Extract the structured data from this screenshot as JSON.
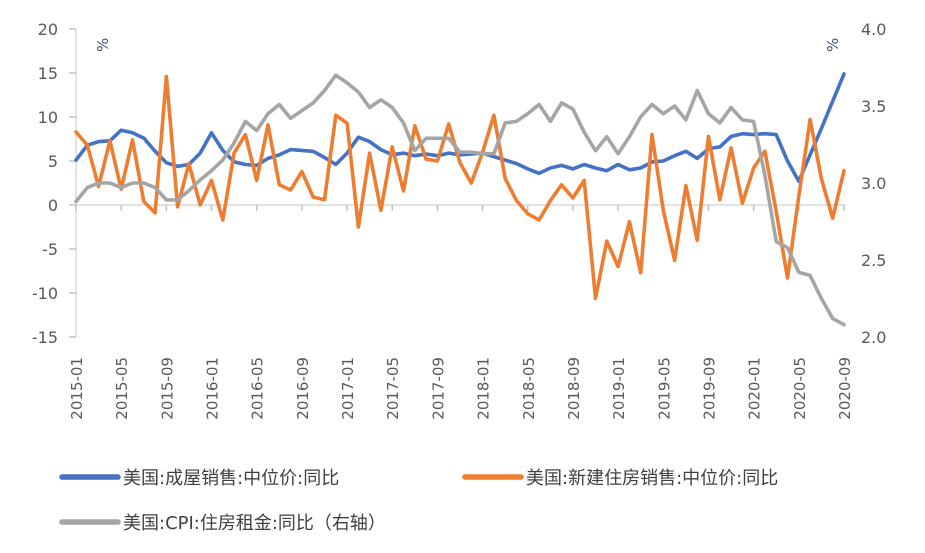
{
  "chart_data": {
    "type": "line",
    "title": "",
    "x_tick_labels": [
      "2015-01",
      "2015-05",
      "2015-09",
      "2016-01",
      "2016-05",
      "2016-09",
      "2017-01",
      "2017-05",
      "2017-09",
      "2018-01",
      "2018-05",
      "2018-09",
      "2019-01",
      "2019-05",
      "2019-09",
      "2020-01",
      "2020-05",
      "2020-09"
    ],
    "months": [
      "2015-01",
      "2015-02",
      "2015-03",
      "2015-04",
      "2015-05",
      "2015-06",
      "2015-07",
      "2015-08",
      "2015-09",
      "2015-10",
      "2015-11",
      "2015-12",
      "2016-01",
      "2016-02",
      "2016-03",
      "2016-04",
      "2016-05",
      "2016-06",
      "2016-07",
      "2016-08",
      "2016-09",
      "2016-10",
      "2016-11",
      "2016-12",
      "2017-01",
      "2017-02",
      "2017-03",
      "2017-04",
      "2017-05",
      "2017-06",
      "2017-07",
      "2017-08",
      "2017-09",
      "2017-10",
      "2017-11",
      "2017-12",
      "2018-01",
      "2018-02",
      "2018-03",
      "2018-04",
      "2018-05",
      "2018-06",
      "2018-07",
      "2018-08",
      "2018-09",
      "2018-10",
      "2018-11",
      "2018-12",
      "2019-01",
      "2019-02",
      "2019-03",
      "2019-04",
      "2019-05",
      "2019-06",
      "2019-07",
      "2019-08",
      "2019-09",
      "2019-10",
      "2019-11",
      "2019-12",
      "2020-01",
      "2020-02",
      "2020-03",
      "2020-04",
      "2020-05",
      "2020-06",
      "2020-07",
      "2020-08",
      "2020-09"
    ],
    "y_left": {
      "unit": "%",
      "ticks": [
        20,
        15,
        10,
        5,
        0,
        -5,
        -10,
        -15
      ],
      "tick_labels": [
        "20",
        "15",
        "10",
        "5",
        "0",
        "-5",
        "-10",
        "-15"
      ],
      "min": -15,
      "max": 20
    },
    "y_right": {
      "unit": "%",
      "ticks": [
        4.0,
        3.5,
        3.0,
        2.5,
        2.0
      ],
      "tick_labels": [
        "4.0",
        "3.5",
        "3.0",
        "2.5",
        "2.0"
      ],
      "min": 2.0,
      "max": 4.0
    },
    "series": [
      {
        "name": "美国:成屋销售:中位价:同比",
        "axis": "left",
        "color": "#4472C4",
        "values": [
          5.1,
          6.8,
          7.2,
          7.3,
          8.5,
          8.2,
          7.6,
          6.1,
          4.8,
          4.4,
          4.6,
          5.9,
          8.2,
          6.2,
          4.9,
          4.6,
          4.5,
          5.3,
          5.7,
          6.3,
          6.2,
          6.1,
          5.4,
          4.6,
          5.9,
          7.7,
          7.2,
          6.3,
          5.7,
          5.9,
          5.6,
          5.8,
          5.6,
          5.9,
          5.7,
          5.8,
          5.9,
          5.5,
          5.1,
          4.7,
          4.1,
          3.6,
          4.2,
          4.5,
          4.1,
          4.6,
          4.2,
          3.9,
          4.6,
          4.0,
          4.2,
          4.9,
          5.0,
          5.6,
          6.1,
          5.3,
          6.4,
          6.6,
          7.8,
          8.1,
          8.0,
          8.1,
          8.0,
          5.0,
          2.7,
          5.7,
          8.7,
          11.8,
          14.9
        ]
      },
      {
        "name": "美国:新建住房销售:中位价:同比",
        "axis": "left",
        "color": "#ED7D31",
        "values": [
          8.3,
          6.8,
          2.1,
          7.3,
          1.8,
          7.4,
          0.4,
          -0.9,
          14.6,
          -0.2,
          4.7,
          0.0,
          2.8,
          -1.7,
          5.9,
          8.0,
          2.8,
          9.1,
          2.3,
          1.7,
          3.8,
          0.9,
          0.6,
          10.2,
          9.3,
          -2.5,
          5.9,
          -0.6,
          6.6,
          1.6,
          9.0,
          5.2,
          5.0,
          9.2,
          4.8,
          2.5,
          6.0,
          10.2,
          3.0,
          0.5,
          -1.0,
          -1.7,
          0.5,
          2.3,
          0.8,
          2.8,
          -10.6,
          -4.1,
          -7.0,
          -1.9,
          -7.7,
          8.0,
          -0.6,
          -6.3,
          2.2,
          -4.0,
          7.8,
          0.6,
          6.5,
          0.2,
          4.2,
          6.1,
          -0.7,
          -8.3,
          1.0,
          9.7,
          3.0,
          -1.5,
          3.9
        ]
      },
      {
        "name": "美国:CPI:住房租金:同比（右轴）",
        "axis": "right",
        "color": "#A5A5A5",
        "values": [
          2.88,
          2.97,
          3.0,
          3.0,
          2.97,
          3.0,
          3.0,
          2.97,
          2.89,
          2.89,
          2.95,
          3.02,
          3.08,
          3.15,
          3.26,
          3.4,
          3.34,
          3.45,
          3.51,
          3.42,
          3.47,
          3.52,
          3.6,
          3.7,
          3.65,
          3.59,
          3.49,
          3.54,
          3.49,
          3.39,
          3.21,
          3.29,
          3.29,
          3.29,
          3.2,
          3.2,
          3.19,
          3.19,
          3.39,
          3.4,
          3.45,
          3.51,
          3.4,
          3.52,
          3.48,
          3.33,
          3.21,
          3.3,
          3.19,
          3.3,
          3.43,
          3.51,
          3.45,
          3.5,
          3.41,
          3.6,
          3.45,
          3.39,
          3.49,
          3.41,
          3.4,
          3.05,
          2.62,
          2.58,
          2.42,
          2.4,
          2.25,
          2.12,
          2.08
        ]
      }
    ],
    "legend": {
      "position": "bottom",
      "entries": [
        "美国:成屋销售:中位价:同比",
        "美国:新建住房销售:中位价:同比",
        "美国:CPI:住房租金:同比（右轴）"
      ]
    },
    "grid": "zero-line-only"
  },
  "colors": {
    "series_blue": "#4472C4",
    "series_orange": "#ED7D31",
    "series_gray": "#A5A5A5",
    "axis_line": "#D9D9D9",
    "tick_mark": "#BFBFBF",
    "tick_text": "#595959",
    "legend_text": "#404040",
    "background": "#FFFFFF"
  },
  "units": {
    "left_unit": "%",
    "right_unit": "%"
  }
}
